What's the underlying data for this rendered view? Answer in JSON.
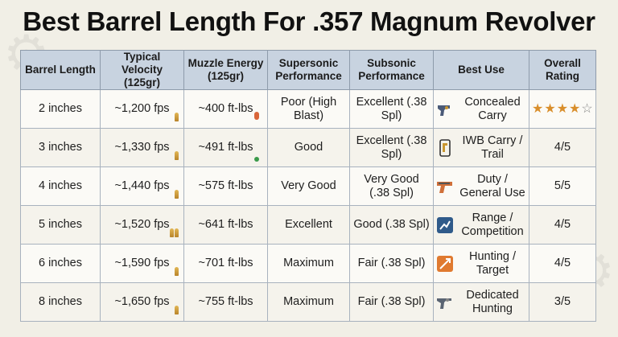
{
  "title": "Best Barrel Length For .357 Magnum Revolver",
  "headers": [
    "Barrel Length",
    "Typical Velocity (125gr)",
    "Muzzle Energy (125gr)",
    "Supersonic Performance",
    "Subsonic Performance",
    "Best Use",
    "Overall Rating"
  ],
  "rows": [
    {
      "length": "2 inches",
      "velocity": "~1,200 fps",
      "energy": "~400 ft-lbs",
      "supersonic": "Poor (High Blast)",
      "subsonic": "Excellent (.38 Spl)",
      "best_use": "Concealed Carry",
      "rating": "",
      "stars": 3.5,
      "icon": "revolver-icon"
    },
    {
      "length": "3 inches",
      "velocity": "~1,330 fps",
      "energy": "~491 ft-lbs",
      "supersonic": "Good",
      "subsonic": "Excellent (.38 Spl)",
      "best_use": "IWB Carry / Trail",
      "rating": "4/5",
      "icon": "holster-icon"
    },
    {
      "length": "4 inches",
      "velocity": "~1,440 fps",
      "energy": "~575 ft-lbs",
      "supersonic": "Very Good",
      "subsonic": "Very Good (.38 Spl)",
      "best_use": "Duty / General Use",
      "rating": "5/5",
      "icon": "pistol-icon"
    },
    {
      "length": "5 inches",
      "velocity": "~1,520 fps",
      "energy": "~641 ft-lbs",
      "supersonic": "Excellent",
      "subsonic": "Good (.38 Spl)",
      "best_use": "Range / Competition",
      "rating": "4/5",
      "icon": "target-icon"
    },
    {
      "length": "6 inches",
      "velocity": "~1,590 fps",
      "energy": "~701 ft-lbs",
      "supersonic": "Maximum",
      "subsonic": "Fair (.38 Spl)",
      "best_use": "Hunting / Target",
      "rating": "4/5",
      "icon": "hunting-icon"
    },
    {
      "length": "8 inches",
      "velocity": "~1,650 fps",
      "energy": "~755 ft-lbs",
      "supersonic": "Maximum",
      "subsonic": "Fair (.38 Spl)",
      "best_use": "Dedicated Hunting",
      "rating": "3/5",
      "icon": "long-revolver-icon"
    }
  ],
  "colors": {
    "header_bg": "#c8d3e0",
    "brass": "#c9962f",
    "energy_low": "#d9663a",
    "energy_mid": "#3a9a4a",
    "star": "#d98e2b"
  }
}
